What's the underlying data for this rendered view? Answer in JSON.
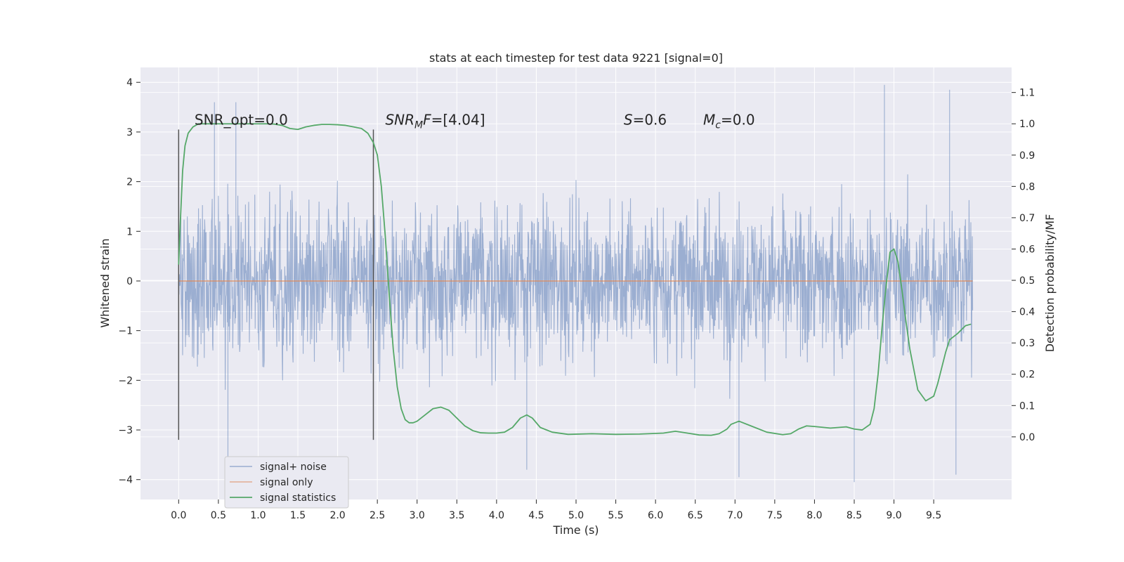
{
  "chart_data": {
    "type": "line",
    "title": "stats at each timestep for test data 9221 [signal=0]",
    "xlabel": "Time (s)",
    "ylabel": "Whitened strain",
    "ylabel_right": "Detection probability/MF",
    "xlim": [
      -0.48,
      10.48
    ],
    "ylim": [
      -4.4,
      4.3
    ],
    "ylim_right": [
      -0.2,
      1.18
    ],
    "xticks": [
      "0.0",
      "0.5",
      "1.0",
      "1.5",
      "2.0",
      "2.5",
      "3.0",
      "3.5",
      "4.0",
      "4.5",
      "5.0",
      "5.5",
      "6.0",
      "6.5",
      "7.0",
      "7.5",
      "8.0",
      "8.5",
      "9.0",
      "9.5"
    ],
    "yticks": [
      "4",
      "3",
      "2",
      "1",
      "0",
      "−1",
      "−2",
      "−3",
      "−4"
    ],
    "yticks_right": [
      "1.1",
      "1.0",
      "0.9",
      "0.8",
      "0.7",
      "0.6",
      "0.5",
      "0.4",
      "0.3",
      "0.2",
      "0.1",
      "0.0"
    ],
    "grid": true,
    "legend_position": "lower-left",
    "colors": {
      "background": "#eaeaf2",
      "grid": "#ffffff",
      "noise": "#4c72b0",
      "signal_only": "#dd8452",
      "statistics": "#55a868",
      "marker": "#555555"
    },
    "series": [
      {
        "name": "signal+ noise",
        "description_values": "dense whitened noise, values roughly between -4 and 4",
        "x_range": [
          0.0,
          9.99
        ],
        "typical_amplitude": [
          -1.2,
          1.2
        ],
        "extreme_values": [
          {
            "x": 0.45,
            "y": 3.6
          },
          {
            "x": 0.62,
            "y": -3.7
          },
          {
            "x": 0.72,
            "y": 3.6
          },
          {
            "x": 4.38,
            "y": -3.8
          },
          {
            "x": 7.05,
            "y": -3.95
          },
          {
            "x": 8.5,
            "y": -4.05
          },
          {
            "x": 8.88,
            "y": 3.95
          },
          {
            "x": 9.7,
            "y": 3.85
          },
          {
            "x": 9.78,
            "y": -3.9
          }
        ]
      },
      {
        "name": "signal only",
        "x": [
          0.0,
          9.99
        ],
        "y": [
          0.0,
          0.0
        ]
      },
      {
        "name": "signal statistics",
        "axis": "right",
        "x": [
          0.0,
          0.02,
          0.05,
          0.08,
          0.12,
          0.18,
          0.25,
          0.35,
          0.5,
          0.7,
          0.9,
          1.0,
          1.1,
          1.2,
          1.3,
          1.4,
          1.5,
          1.6,
          1.7,
          1.8,
          1.9,
          2.0,
          2.1,
          2.2,
          2.3,
          2.38,
          2.45,
          2.5,
          2.55,
          2.6,
          2.65,
          2.7,
          2.75,
          2.8,
          2.85,
          2.9,
          2.95,
          3.0,
          3.1,
          3.2,
          3.3,
          3.4,
          3.5,
          3.6,
          3.7,
          3.8,
          3.9,
          4.0,
          4.1,
          4.2,
          4.3,
          4.38,
          4.45,
          4.55,
          4.7,
          4.9,
          5.2,
          5.5,
          5.8,
          6.1,
          6.25,
          6.4,
          6.55,
          6.7,
          6.8,
          6.9,
          6.95,
          7.05,
          7.2,
          7.4,
          7.6,
          7.7,
          7.8,
          7.9,
          8.0,
          8.2,
          8.4,
          8.5,
          8.6,
          8.7,
          8.75,
          8.8,
          8.85,
          8.9,
          8.95,
          9.0,
          9.05,
          9.1,
          9.15,
          9.2,
          9.3,
          9.4,
          9.5,
          9.55,
          9.6,
          9.65,
          9.7,
          9.8,
          9.9,
          9.97
        ],
        "y": [
          0.55,
          0.68,
          0.85,
          0.93,
          0.97,
          0.99,
          1.0,
          1.0,
          1.0,
          1.0,
          1.0,
          1.0,
          1.0,
          0.999,
          0.995,
          0.985,
          0.982,
          0.99,
          0.995,
          0.998,
          0.998,
          0.997,
          0.995,
          0.99,
          0.985,
          0.97,
          0.94,
          0.9,
          0.8,
          0.64,
          0.45,
          0.28,
          0.16,
          0.09,
          0.055,
          0.045,
          0.045,
          0.05,
          0.07,
          0.09,
          0.095,
          0.085,
          0.06,
          0.035,
          0.02,
          0.013,
          0.012,
          0.012,
          0.015,
          0.03,
          0.06,
          0.07,
          0.06,
          0.03,
          0.015,
          0.008,
          0.01,
          0.008,
          0.009,
          0.012,
          0.018,
          0.012,
          0.006,
          0.005,
          0.01,
          0.025,
          0.04,
          0.05,
          0.035,
          0.015,
          0.007,
          0.01,
          0.025,
          0.035,
          0.033,
          0.028,
          0.032,
          0.025,
          0.022,
          0.04,
          0.09,
          0.2,
          0.35,
          0.48,
          0.59,
          0.6,
          0.56,
          0.47,
          0.37,
          0.28,
          0.15,
          0.115,
          0.13,
          0.17,
          0.22,
          0.27,
          0.31,
          0.33,
          0.355,
          0.36
        ]
      }
    ],
    "markers": {
      "description": "vertical lines marking the signal window",
      "x": [
        0.0,
        2.45
      ],
      "y_from": -3.2,
      "y_to": 3.05
    },
    "annotations": [
      {
        "text": "SNR_opt=0.0",
        "x": 0.2,
        "y": 3.15
      },
      {
        "main": "SNR",
        "sub": "M",
        "tail": "F=[4.04]",
        "x": 2.6,
        "y": 3.15
      },
      {
        "main": "S",
        "sub": "",
        "tail": "=0.6",
        "x": 5.6,
        "y": 3.15
      },
      {
        "main": "M",
        "sub": "c",
        "tail": "=0.0",
        "x": 6.6,
        "y": 3.15
      }
    ],
    "legend": [
      "signal+ noise",
      "signal only",
      "signal statistics"
    ]
  }
}
